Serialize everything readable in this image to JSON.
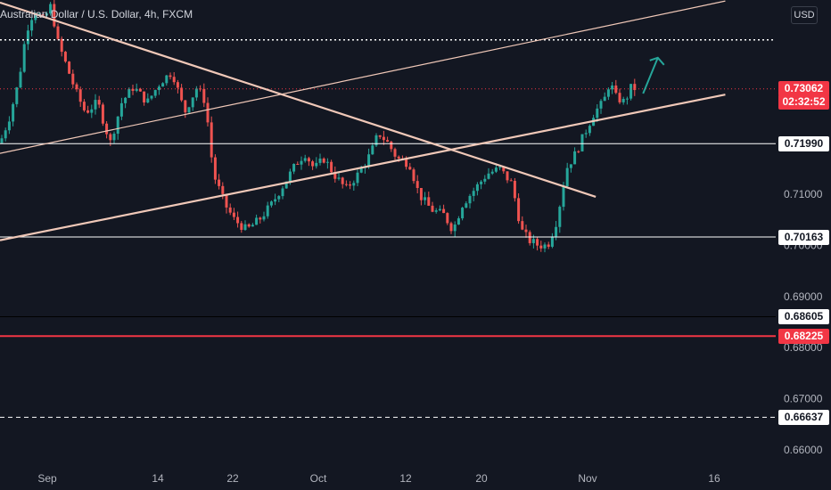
{
  "header": {
    "title": "Australian Dollar / U.S. Dollar, 4h, FXCM",
    "currency": "USD"
  },
  "chart_data": {
    "type": "candlestick",
    "title": "Australian Dollar / U.S. Dollar, 4h, FXCM",
    "xlabel": "",
    "ylabel": "",
    "y_axis_unit": "USD",
    "ylim": [
      0.6565,
      0.748
    ],
    "y_ticks": [
      "0.71000",
      "0.70000",
      "0.69000",
      "0.68000",
      "0.67000",
      "0.66000"
    ],
    "x_ticks": [
      "Sep",
      "14",
      "22",
      "Oct",
      "12",
      "20",
      "Nov",
      "16"
    ],
    "price_tags": [
      {
        "label": "0.73062",
        "value": 0.73062,
        "style": "last-price",
        "bg": "#f23645",
        "fg": "#ffffff"
      },
      {
        "label": "02:32:52",
        "value": 0.728,
        "style": "countdown",
        "bg": "#f23645",
        "fg": "#ffffff"
      },
      {
        "label": "0.71990",
        "value": 0.7199,
        "style": "horizontal-line",
        "bg": "#ffffff",
        "fg": "#131722"
      },
      {
        "label": "0.70163",
        "value": 0.70163,
        "style": "horizontal-line",
        "bg": "#ffffff",
        "fg": "#131722"
      },
      {
        "label": "0.68605",
        "value": 0.68605,
        "style": "horizontal-line",
        "bg": "#ffffff",
        "fg": "#131722"
      },
      {
        "label": "0.68225",
        "value": 0.68225,
        "style": "red-line",
        "bg": "#f23645",
        "fg": "#ffffff"
      },
      {
        "label": "0.66637",
        "value": 0.66637,
        "style": "dashed-line",
        "bg": "#ffffff",
        "fg": "#131722"
      }
    ],
    "top_dotted_level": 0.7402,
    "trendlines": [
      {
        "name": "falling",
        "from": [
          0.0,
          0.7475
        ],
        "to": [
          0.768,
          0.7095
        ]
      },
      {
        "name": "rising-upper",
        "from": [
          0.0,
          0.718
        ],
        "to": [
          0.935,
          0.7478
        ]
      },
      {
        "name": "rising-lower",
        "from": [
          0.0,
          0.701
        ],
        "to": [
          0.935,
          0.7295
        ]
      }
    ],
    "arrow": {
      "from": [
        0.829,
        0.7297
      ],
      "to": [
        0.848,
        0.7367
      ],
      "color": "#26a69a"
    },
    "close_anchors": [
      [
        0.0,
        0.72
      ],
      [
        0.012,
        0.725
      ],
      [
        0.024,
        0.732
      ],
      [
        0.034,
        0.742
      ],
      [
        0.044,
        0.746
      ],
      [
        0.056,
        0.744
      ],
      [
        0.066,
        0.747
      ],
      [
        0.074,
        0.74
      ],
      [
        0.086,
        0.735
      ],
      [
        0.098,
        0.73
      ],
      [
        0.11,
        0.726
      ],
      [
        0.126,
        0.728
      ],
      [
        0.142,
        0.72
      ],
      [
        0.157,
        0.728
      ],
      [
        0.172,
        0.731
      ],
      [
        0.19,
        0.728
      ],
      [
        0.207,
        0.732
      ],
      [
        0.222,
        0.734
      ],
      [
        0.238,
        0.726
      ],
      [
        0.254,
        0.731
      ],
      [
        0.265,
        0.728
      ],
      [
        0.275,
        0.714
      ],
      [
        0.29,
        0.708
      ],
      [
        0.302,
        0.705
      ],
      [
        0.318,
        0.703
      ],
      [
        0.334,
        0.705
      ],
      [
        0.35,
        0.708
      ],
      [
        0.366,
        0.712
      ],
      [
        0.382,
        0.716
      ],
      [
        0.393,
        0.718
      ],
      [
        0.405,
        0.715
      ],
      [
        0.418,
        0.717
      ],
      [
        0.43,
        0.714
      ],
      [
        0.446,
        0.711
      ],
      [
        0.462,
        0.714
      ],
      [
        0.478,
        0.718
      ],
      [
        0.488,
        0.722
      ],
      [
        0.5,
        0.72
      ],
      [
        0.512,
        0.717
      ],
      [
        0.528,
        0.716
      ],
      [
        0.54,
        0.71
      ],
      [
        0.556,
        0.707
      ],
      [
        0.572,
        0.706
      ],
      [
        0.584,
        0.703
      ],
      [
        0.596,
        0.708
      ],
      [
        0.612,
        0.711
      ],
      [
        0.628,
        0.714
      ],
      [
        0.644,
        0.715
      ],
      [
        0.66,
        0.712
      ],
      [
        0.672,
        0.703
      ],
      [
        0.682,
        0.701
      ],
      [
        0.694,
        0.7
      ],
      [
        0.706,
        0.7
      ],
      [
        0.718,
        0.705
      ],
      [
        0.73,
        0.715
      ],
      [
        0.742,
        0.718
      ],
      [
        0.754,
        0.722
      ],
      [
        0.766,
        0.726
      ],
      [
        0.778,
        0.728
      ],
      [
        0.786,
        0.732
      ],
      [
        0.794,
        0.729
      ],
      [
        0.805,
        0.728
      ],
      [
        0.814,
        0.731
      ],
      [
        0.82,
        0.7306
      ]
    ],
    "colors": {
      "background": "#131722",
      "up": "#26a69a",
      "down": "#ef5350",
      "trendline": "#f0c8b8",
      "horizontal_line": "#ffffff",
      "red_line": "#f23645",
      "last_price_line": "#f23645"
    }
  }
}
